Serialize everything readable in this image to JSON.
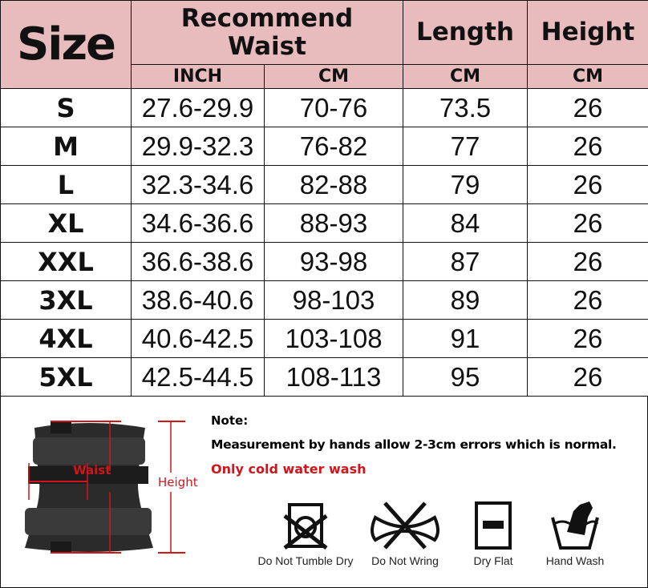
{
  "header": {
    "size": "Size",
    "waist": "Recommend Waist",
    "length": "Length",
    "height": "Height",
    "inch": "INCH",
    "cm1": "CM",
    "cm2": "CM",
    "cm3": "CM"
  },
  "rows": [
    {
      "size": "S",
      "inch": "27.6-29.9",
      "cm": "70-76",
      "length": "73.5",
      "height": "26"
    },
    {
      "size": "M",
      "inch": "29.9-32.3",
      "cm": "76-82",
      "length": "77",
      "height": "26"
    },
    {
      "size": "L",
      "inch": "32.3-34.6",
      "cm": "82-88",
      "length": "79",
      "height": "26"
    },
    {
      "size": "XL",
      "inch": "34.6-36.6",
      "cm": "88-93",
      "length": "84",
      "height": "26"
    },
    {
      "size": "XXL",
      "inch": "36.6-38.6",
      "cm": "93-98",
      "length": "87",
      "height": "26"
    },
    {
      "size": "3XL",
      "inch": "38.6-40.6",
      "cm": "98-103",
      "length": "89",
      "height": "26"
    },
    {
      "size": "4XL",
      "inch": "40.6-42.5",
      "cm": "103-108",
      "length": "91",
      "height": "26"
    },
    {
      "size": "5XL",
      "inch": "42.5-44.5",
      "cm": "108-113",
      "length": "95",
      "height": "26"
    }
  ],
  "diagram": {
    "waist": "Waist",
    "height": "Height"
  },
  "notes": {
    "title": "Note:",
    "line1": "Measurement by hands allow 2-3cm errors which is normal.",
    "line2": "Only cold water wash"
  },
  "care": [
    {
      "icon": "do-not-tumble-dry-icon",
      "label": "Do Not Tumble Dry"
    },
    {
      "icon": "do-not-wring-icon",
      "label": "Do Not Wring"
    },
    {
      "icon": "dry-flat-icon",
      "label": "Dry Flat"
    },
    {
      "icon": "hand-wash-icon",
      "label": "Hand Wash"
    }
  ],
  "colors": {
    "header_bg": "#e8bcbc",
    "accent_red": "#d0161b"
  }
}
